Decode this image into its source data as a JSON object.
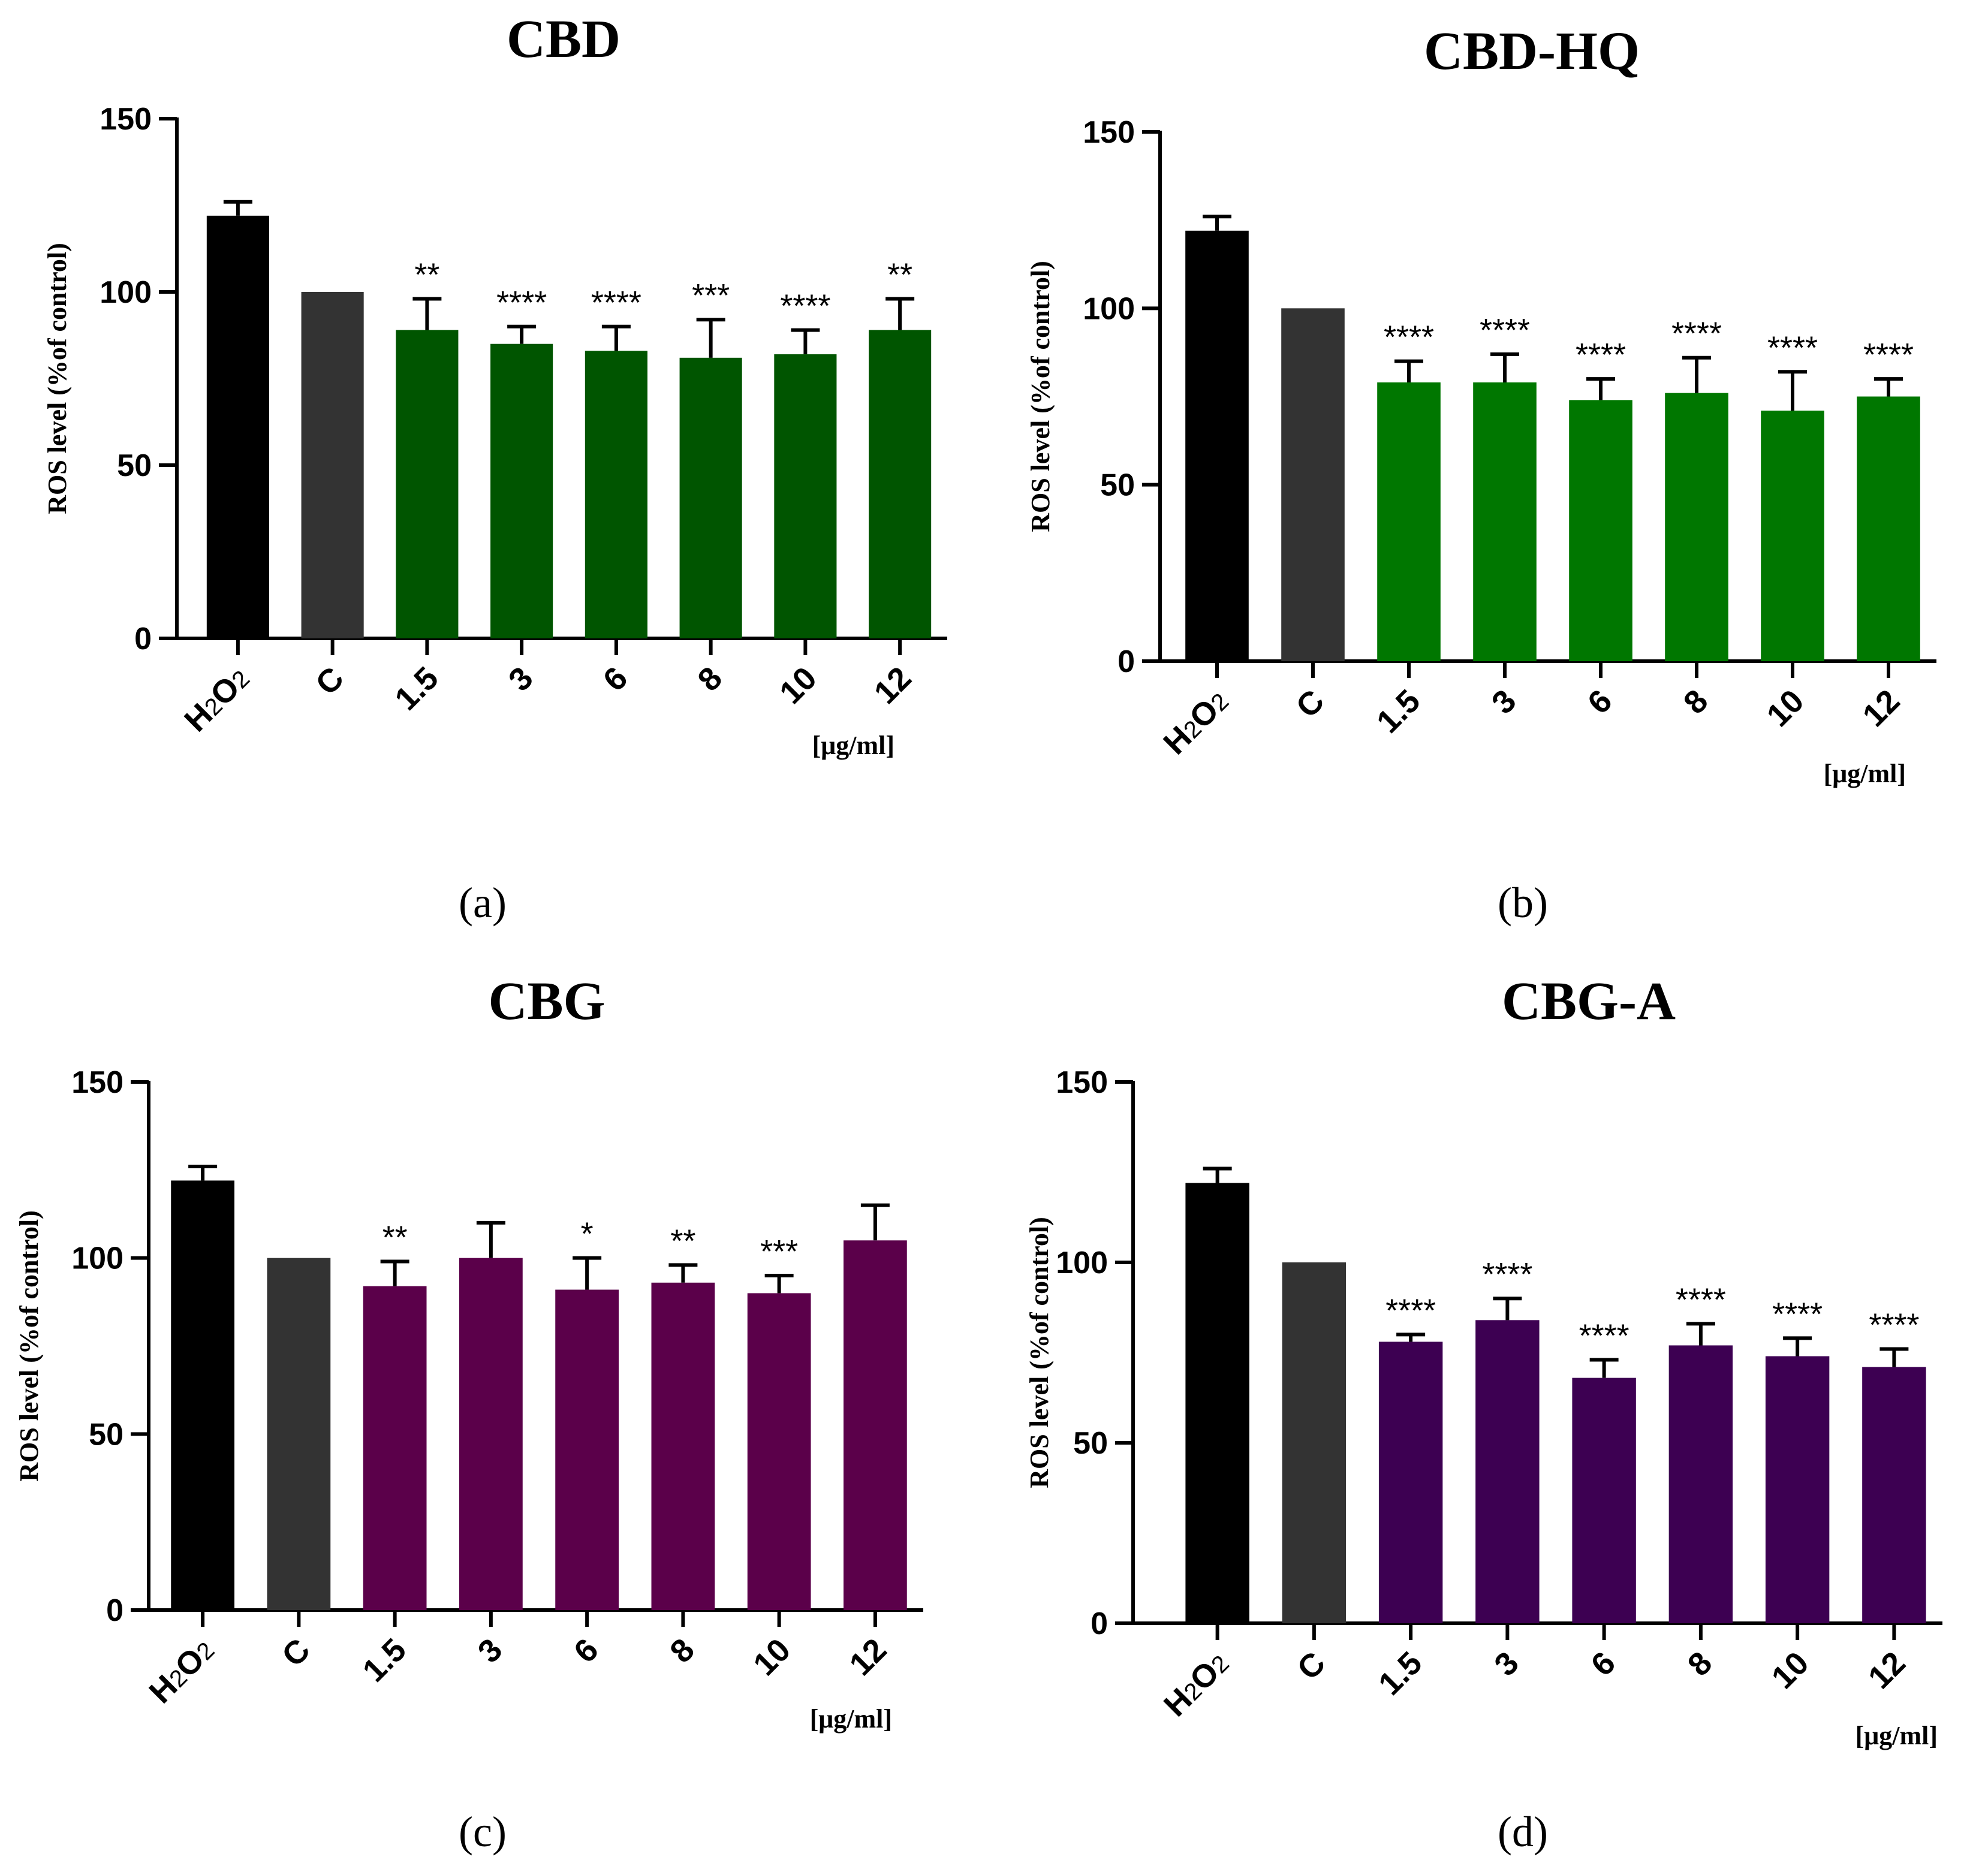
{
  "chart_data": [
    {
      "type": "bar",
      "panel_label": "(a)",
      "title": "CBD",
      "ylabel": "ROS level (%of control)",
      "ylim": [
        0,
        150
      ],
      "yticks": [
        0,
        50,
        100,
        150
      ],
      "categories": [
        "H2O2",
        "C",
        "1.5",
        "3",
        "6",
        "8",
        "10",
        "12"
      ],
      "values": [
        122,
        100,
        89,
        85,
        83,
        81,
        82,
        89
      ],
      "errors": [
        4,
        0,
        9,
        5,
        7,
        11,
        7,
        9
      ],
      "significance": [
        "",
        "",
        "**",
        "****",
        "****",
        "***",
        "****",
        "**"
      ],
      "unit_label": "[μg/ml]",
      "colors": [
        "#000000",
        "#333333",
        "#005500",
        "#005500",
        "#005500",
        "#005500",
        "#005500",
        "#005500"
      ]
    },
    {
      "type": "bar",
      "panel_label": "(b)",
      "title": "CBD-HQ",
      "ylabel": "ROS level (%of control)",
      "ylim": [
        0,
        150
      ],
      "yticks": [
        0,
        50,
        100,
        150
      ],
      "categories": [
        "H2O2",
        "C",
        "1.5",
        "3",
        "6",
        "8",
        "10",
        "12"
      ],
      "values": [
        122,
        100,
        79,
        79,
        74,
        76,
        71,
        75
      ],
      "errors": [
        4,
        0,
        6,
        8,
        6,
        10,
        11,
        5
      ],
      "significance": [
        "",
        "",
        "****",
        "****",
        "****",
        "****",
        "****",
        "****"
      ],
      "unit_label": "[μg/ml]",
      "colors": [
        "#000000",
        "#333333",
        "#007700",
        "#007700",
        "#007700",
        "#007700",
        "#007700",
        "#007700"
      ]
    },
    {
      "type": "bar",
      "panel_label": "(c)",
      "title": "CBG",
      "ylabel": "ROS level (%of control)",
      "ylim": [
        0,
        150
      ],
      "yticks": [
        0,
        50,
        100,
        150
      ],
      "categories": [
        "H2O2",
        "C",
        "1.5",
        "3",
        "6",
        "8",
        "10",
        "12"
      ],
      "values": [
        122,
        100,
        92,
        100,
        91,
        93,
        90,
        105
      ],
      "errors": [
        4,
        0,
        7,
        10,
        9,
        5,
        5,
        10
      ],
      "significance": [
        "",
        "",
        "**",
        "",
        "*",
        "**",
        "***",
        ""
      ],
      "unit_label": "[μg/ml]",
      "colors": [
        "#000000",
        "#333333",
        "#5b004a",
        "#5b004a",
        "#5b004a",
        "#5b004a",
        "#5b004a",
        "#5b004a"
      ]
    },
    {
      "type": "bar",
      "panel_label": "(d)",
      "title": "CBG-A",
      "ylabel": "ROS level (%of control)",
      "ylim": [
        0,
        150
      ],
      "yticks": [
        0,
        50,
        100,
        150
      ],
      "categories": [
        "H2O2",
        "C",
        "1.5",
        "3",
        "6",
        "8",
        "10",
        "12"
      ],
      "values": [
        122,
        100,
        78,
        84,
        68,
        77,
        74,
        71
      ],
      "errors": [
        4,
        0,
        2,
        6,
        5,
        6,
        5,
        5
      ],
      "significance": [
        "",
        "",
        "****",
        "****",
        "****",
        "****",
        "****",
        "****"
      ],
      "unit_label": "[μg/ml]",
      "colors": [
        "#000000",
        "#333333",
        "#3d0052",
        "#3d0052",
        "#3d0052",
        "#3d0052",
        "#3d0052",
        "#3d0052"
      ]
    }
  ]
}
